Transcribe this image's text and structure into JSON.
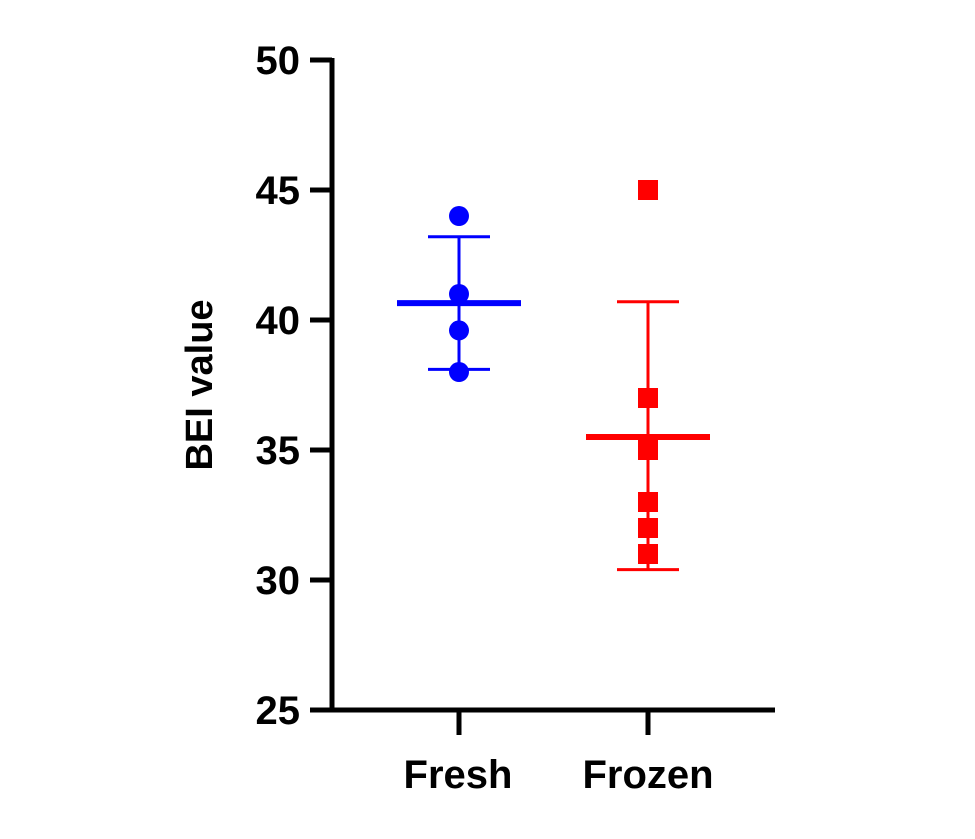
{
  "chart_data": {
    "type": "scatter",
    "title": "",
    "xlabel": "",
    "ylabel": "BEI value",
    "ylim": [
      25,
      50
    ],
    "yticks": [
      25,
      30,
      35,
      40,
      45,
      50
    ],
    "grid": false,
    "categories": [
      "Fresh",
      "Frozen"
    ],
    "series": [
      {
        "category": "Fresh",
        "color": "#0000ff",
        "marker": "circle",
        "values": [
          44,
          41,
          39.6,
          38
        ],
        "mean": 40.65,
        "sd_low": 38.1,
        "sd_high": 43.2
      },
      {
        "category": "Frozen",
        "color": "#ff0000",
        "marker": "square",
        "values": [
          45,
          37,
          35,
          33,
          32,
          31
        ],
        "mean": 35.5,
        "sd_low": 30.4,
        "sd_high": 40.7
      }
    ]
  }
}
